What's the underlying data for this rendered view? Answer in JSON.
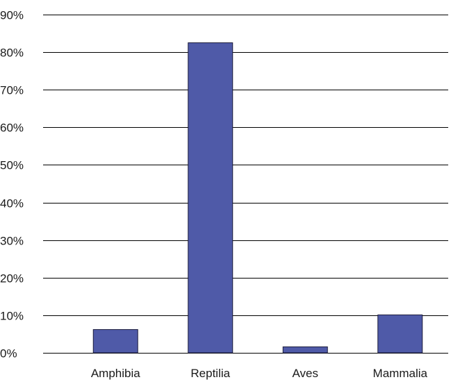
{
  "chart_data": {
    "type": "bar",
    "title": "",
    "xlabel": "",
    "ylabel": "",
    "categories": [
      "Amphibia",
      "Reptilia",
      "Aves",
      "Mammalia"
    ],
    "values": [
      6.2,
      82.5,
      1.6,
      10.1
    ],
    "unit": "%",
    "ylim": [
      0,
      90
    ],
    "yticks": [
      0,
      10,
      20,
      30,
      40,
      50,
      60,
      70,
      80,
      90
    ],
    "ytick_labels": [
      "0%",
      "10%",
      "20%",
      "30%",
      "40%",
      "50%",
      "60%",
      "70%",
      "80%",
      "90%"
    ],
    "grid": true,
    "legend": "none",
    "bar_color": "#4f5aa8"
  }
}
